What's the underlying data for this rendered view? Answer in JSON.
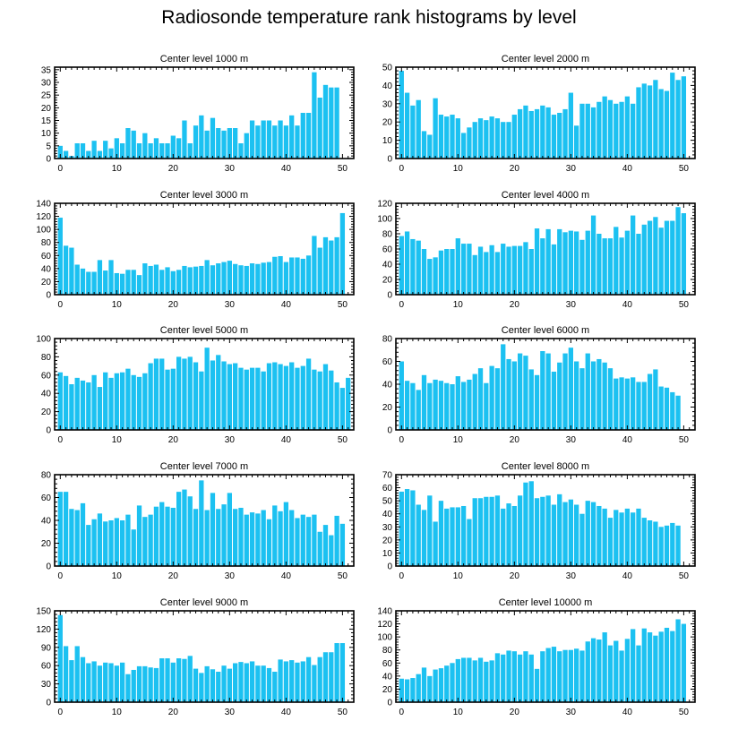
{
  "title": "Radiosonde temperature rank histograms by level",
  "colors": {
    "bar": "#1cc1f1",
    "axis": "#000000"
  },
  "chart_data": [
    {
      "type": "bar",
      "title": "Center level 1000 m",
      "xlabel": "",
      "ylabel": "",
      "xlim": [
        -1,
        52
      ],
      "ylim": [
        0,
        36
      ],
      "xticks": [
        0,
        10,
        20,
        30,
        40,
        50
      ],
      "yticks": [
        0,
        5,
        10,
        15,
        20,
        25,
        30,
        35
      ],
      "values": [
        5,
        3,
        1,
        6,
        6,
        3,
        7,
        3,
        7,
        4,
        8,
        6,
        12,
        11,
        6,
        10,
        6,
        8,
        6,
        6,
        9,
        8,
        15,
        6,
        13,
        17,
        11,
        16,
        12,
        11,
        12,
        12,
        6,
        10,
        15,
        13,
        15,
        15,
        13,
        15,
        13,
        17,
        13,
        18,
        18,
        34,
        24,
        29,
        28,
        28
      ]
    },
    {
      "type": "bar",
      "title": "Center level 2000 m",
      "xlabel": "",
      "ylabel": "",
      "xlim": [
        -1,
        52
      ],
      "ylim": [
        0,
        50
      ],
      "xticks": [
        0,
        10,
        20,
        30,
        40,
        50
      ],
      "yticks": [
        0,
        10,
        20,
        30,
        40,
        50
      ],
      "values": [
        48,
        36,
        29,
        32,
        15,
        13,
        33,
        24,
        23,
        24,
        22,
        14,
        17,
        20,
        22,
        21,
        23,
        22,
        20,
        20,
        24,
        27,
        29,
        26,
        27,
        29,
        28,
        24,
        25,
        27,
        36,
        18,
        30,
        30,
        28,
        31,
        34,
        32,
        30,
        31,
        34,
        30,
        39,
        41,
        40,
        43,
        38,
        37,
        47,
        43,
        45
      ]
    },
    {
      "type": "bar",
      "title": "Center level 3000 m",
      "xlabel": "",
      "ylabel": "",
      "xlim": [
        -1,
        52
      ],
      "ylim": [
        0,
        140
      ],
      "xticks": [
        0,
        10,
        20,
        30,
        40,
        50
      ],
      "yticks": [
        0,
        20,
        40,
        60,
        80,
        100,
        120,
        140
      ],
      "values": [
        118,
        75,
        72,
        46,
        40,
        35,
        35,
        53,
        37,
        53,
        33,
        32,
        38,
        38,
        30,
        48,
        44,
        46,
        38,
        42,
        36,
        38,
        44,
        42,
        43,
        44,
        53,
        45,
        48,
        50,
        52,
        47,
        45,
        44,
        48,
        47,
        49,
        50,
        58,
        59,
        50,
        57,
        57,
        55,
        60,
        90,
        72,
        88,
        83,
        88,
        125
      ]
    },
    {
      "type": "bar",
      "title": "Center level 4000 m",
      "xlabel": "",
      "ylabel": "",
      "xlim": [
        -1,
        52
      ],
      "ylim": [
        0,
        120
      ],
      "xticks": [
        0,
        10,
        20,
        30,
        40,
        50
      ],
      "yticks": [
        0,
        20,
        40,
        60,
        80,
        100,
        120
      ],
      "values": [
        77,
        83,
        73,
        71,
        60,
        47,
        49,
        58,
        60,
        60,
        74,
        67,
        67,
        52,
        63,
        56,
        65,
        56,
        67,
        63,
        64,
        64,
        69,
        60,
        87,
        74,
        86,
        66,
        86,
        82,
        84,
        83,
        72,
        84,
        104,
        80,
        74,
        74,
        89,
        75,
        84,
        104,
        80,
        92,
        97,
        102,
        88,
        97,
        97,
        115,
        107
      ]
    },
    {
      "type": "bar",
      "title": "Center level 5000 m",
      "xlabel": "",
      "ylabel": "",
      "xlim": [
        -1,
        52
      ],
      "ylim": [
        0,
        100
      ],
      "xticks": [
        0,
        10,
        20,
        30,
        40,
        50
      ],
      "yticks": [
        0,
        20,
        40,
        60,
        80,
        100
      ],
      "values": [
        63,
        59,
        50,
        57,
        54,
        52,
        60,
        47,
        63,
        57,
        62,
        63,
        67,
        60,
        58,
        62,
        73,
        78,
        78,
        66,
        67,
        80,
        78,
        80,
        74,
        64,
        90,
        76,
        82,
        75,
        72,
        73,
        68,
        66,
        68,
        68,
        64,
        73,
        74,
        72,
        70,
        74,
        68,
        70,
        78,
        66,
        64,
        72,
        65,
        52,
        46,
        57
      ]
    },
    {
      "type": "bar",
      "title": "Center level 6000 m",
      "xlabel": "",
      "ylabel": "",
      "xlim": [
        -1,
        52
      ],
      "ylim": [
        0,
        80
      ],
      "xticks": [
        0,
        10,
        20,
        30,
        40,
        50
      ],
      "yticks": [
        0,
        20,
        40,
        60,
        80
      ],
      "values": [
        60,
        43,
        41,
        35,
        48,
        41,
        44,
        43,
        41,
        40,
        47,
        42,
        44,
        49,
        54,
        41,
        56,
        54,
        75,
        62,
        60,
        67,
        65,
        53,
        48,
        69,
        67,
        51,
        59,
        67,
        72,
        60,
        54,
        67,
        60,
        62,
        59,
        54,
        45,
        46,
        45,
        46,
        42,
        42,
        49,
        53,
        38,
        37,
        33,
        30
      ]
    },
    {
      "type": "bar",
      "title": "Center level 7000 m",
      "xlabel": "",
      "ylabel": "",
      "xlim": [
        -1,
        52
      ],
      "ylim": [
        0,
        80
      ],
      "xticks": [
        0,
        10,
        20,
        30,
        40,
        50
      ],
      "yticks": [
        0,
        20,
        40,
        60,
        80
      ],
      "values": [
        65,
        65,
        50,
        49,
        55,
        36,
        41,
        46,
        39,
        40,
        42,
        40,
        45,
        32,
        53,
        43,
        45,
        52,
        56,
        52,
        51,
        65,
        67,
        61,
        50,
        75,
        49,
        64,
        50,
        54,
        64,
        50,
        51,
        45,
        47,
        46,
        49,
        41,
        53,
        48,
        56,
        49,
        42,
        45,
        43,
        45,
        30,
        36,
        27,
        44,
        37
      ]
    },
    {
      "type": "bar",
      "title": "Center level 8000 m",
      "xlabel": "",
      "ylabel": "",
      "xlim": [
        -1,
        52
      ],
      "ylim": [
        0,
        70
      ],
      "xticks": [
        0,
        10,
        20,
        30,
        40,
        50
      ],
      "yticks": [
        0,
        10,
        20,
        30,
        40,
        50,
        60,
        70
      ],
      "values": [
        57,
        59,
        58,
        47,
        43,
        54,
        34,
        50,
        44,
        45,
        45,
        46,
        36,
        52,
        52,
        53,
        53,
        54,
        44,
        48,
        46,
        54,
        64,
        65,
        52,
        53,
        54,
        47,
        55,
        49,
        51,
        47,
        40,
        50,
        49,
        46,
        44,
        37,
        43,
        41,
        44,
        41,
        44,
        37,
        35,
        34,
        30,
        31,
        33,
        31
      ]
    },
    {
      "type": "bar",
      "title": "Center level 9000 m",
      "xlabel": "",
      "ylabel": "",
      "xlim": [
        -1,
        52
      ],
      "ylim": [
        0,
        150
      ],
      "xticks": [
        0,
        10,
        20,
        30,
        40,
        50
      ],
      "yticks": [
        0,
        30,
        60,
        90,
        120,
        150
      ],
      "values": [
        143,
        92,
        69,
        92,
        74,
        64,
        67,
        60,
        65,
        64,
        60,
        65,
        46,
        53,
        59,
        59,
        57,
        56,
        72,
        72,
        65,
        72,
        71,
        76,
        55,
        48,
        59,
        54,
        50,
        60,
        55,
        64,
        66,
        64,
        67,
        60,
        60,
        56,
        50,
        70,
        67,
        69,
        65,
        67,
        74,
        61,
        74,
        82,
        82,
        97,
        97
      ]
    },
    {
      "type": "bar",
      "title": "Center level 10000 m",
      "xlabel": "",
      "ylabel": "",
      "xlim": [
        -1,
        52
      ],
      "ylim": [
        0,
        140
      ],
      "xticks": [
        0,
        10,
        20,
        30,
        40,
        50
      ],
      "yticks": [
        0,
        20,
        40,
        60,
        80,
        100,
        120,
        140
      ],
      "values": [
        36,
        35,
        37,
        43,
        53,
        40,
        50,
        52,
        56,
        60,
        66,
        68,
        68,
        64,
        68,
        62,
        64,
        75,
        73,
        79,
        78,
        73,
        78,
        73,
        51,
        78,
        83,
        85,
        78,
        80,
        80,
        82,
        79,
        93,
        98,
        96,
        107,
        87,
        94,
        79,
        97,
        112,
        87,
        113,
        107,
        102,
        108,
        114,
        109,
        127,
        120
      ]
    }
  ]
}
